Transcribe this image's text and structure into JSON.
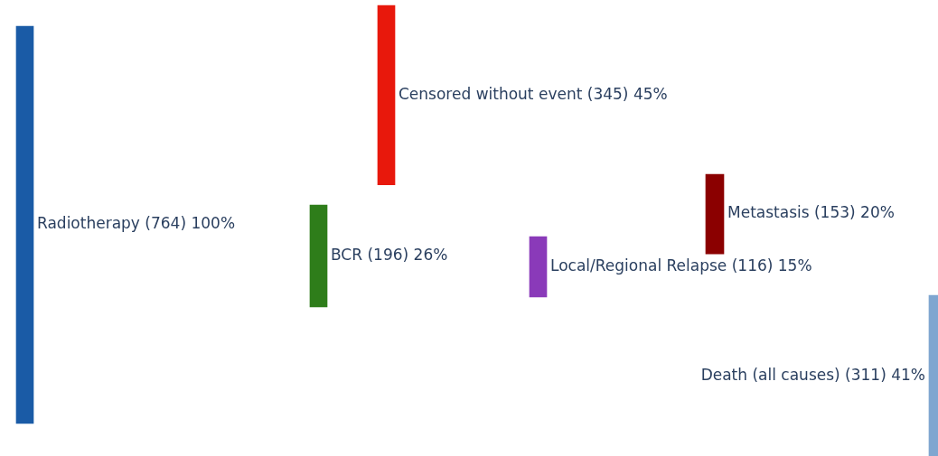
{
  "chart_data": {
    "type": "other",
    "categories": [
      "Radiotherapy",
      "Censored without event",
      "BCR",
      "Local/Regional Relapse",
      "Metastasis",
      "Death (all causes)"
    ],
    "values": [
      764,
      345,
      196,
      116,
      153,
      311
    ],
    "value_labels": [
      "(764) 100%",
      "(345) 45%",
      "(196) 26%",
      "(116) 15%",
      "(153) 20%",
      "(311) 41%"
    ],
    "colors": [
      "#1a5ba6",
      "#e8180c",
      "#2e7d1a",
      "#8a3ab9",
      "#8b0000",
      "#7fa6d0"
    ]
  }
}
